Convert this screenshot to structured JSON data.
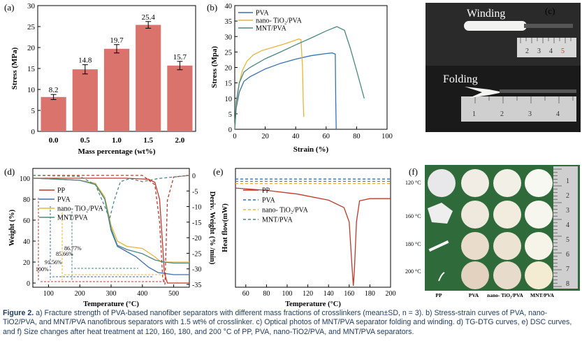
{
  "caption": {
    "label": "Figure 2.",
    "text": "a) Fracture strength of PVA-based nanofiber separators with different mass fractions of crosslinkers (mean±SD, n = 3). b) Stress-strain curves of PVA, nano-TiO2/PVA, and MNT/PVA nanofibrous separators with 1.5 wt% of crosslinker. c) Optical photos of MNT/PVA separator folding and winding. d) TG-DTG curves, e) DSC curves, and f) Size changes after heat treatment at 120, 160, 180, and 200 °C of PP, PVA, nano-TiO2/PVA, and MNT/PVA separators."
  },
  "panels": {
    "a": "(a)",
    "b": "(b)",
    "c": "(c)",
    "d": "(d)",
    "e": "(e)",
    "f": "(f)"
  },
  "photo_c": {
    "label_top": "Winding",
    "label_bottom": "Folding",
    "ruler_numbers": [
      "1",
      "2",
      "3",
      "4",
      "5"
    ]
  },
  "photo_f": {
    "row_labels": [
      "120 °C",
      "160 °C",
      "180 °C",
      "200 °C"
    ],
    "col_labels": [
      "PP",
      "PVA",
      "nano- TiO₂/PVA",
      "MNT/PVA"
    ],
    "ruler_numbers": [
      "1",
      "2",
      "3",
      "4",
      "5",
      "6",
      "7",
      "8"
    ]
  },
  "chart_data": [
    {
      "id": "a",
      "type": "bar",
      "categories": [
        "0.0",
        "0.5",
        "1.0",
        "1.5",
        "2.0"
      ],
      "values": [
        8.2,
        14.8,
        19.7,
        25.4,
        15.7
      ],
      "errors": [
        0.6,
        1.1,
        1.0,
        0.8,
        1.0
      ],
      "value_labels": [
        "8.2",
        "14.8",
        "19.7",
        "25.4",
        "15.7"
      ],
      "xlabel": "Mass percentage (wt%)",
      "ylabel": "Stress (MPa)",
      "ylim": [
        0,
        30
      ],
      "yticks": [
        "0",
        "5",
        "10",
        "15",
        "20",
        "25",
        "30"
      ],
      "color": "#d9736b"
    },
    {
      "id": "b",
      "type": "line",
      "xlabel": "Strain (%)",
      "ylabel": "Stress (Mpa)",
      "xlim": [
        0,
        100
      ],
      "ylim": [
        0,
        40
      ],
      "xticks": [
        "0",
        "20",
        "40",
        "60",
        "80",
        "100"
      ],
      "yticks": [
        "0",
        "5",
        "10",
        "15",
        "20",
        "25",
        "30",
        "35",
        "40"
      ],
      "series": [
        {
          "name": "PVA",
          "color": "#3a6fb5",
          "x": [
            0,
            1,
            3,
            6,
            10,
            20,
            30,
            40,
            50,
            60,
            64,
            66,
            66.3,
            66.6
          ],
          "y": [
            0,
            7,
            12,
            15.5,
            17,
            19.5,
            21.3,
            22.7,
            23.8,
            24.5,
            24.7,
            24.3,
            10,
            0
          ]
        },
        {
          "name": "nano- TiO₂/PVA",
          "color": "#e8b53a",
          "x": [
            0,
            1,
            3,
            5,
            8,
            12,
            18,
            25,
            32,
            38,
            42,
            43.5,
            44.5,
            45,
            45.3
          ],
          "y": [
            0,
            8,
            15,
            19,
            22,
            24,
            25.5,
            26.5,
            27.5,
            28.5,
            29.2,
            29,
            20,
            8,
            4
          ]
        },
        {
          "name": "MNT/PVA",
          "color": "#4a8a80",
          "x": [
            0,
            1,
            3,
            6,
            10,
            20,
            30,
            40,
            50,
            60,
            67,
            72,
            76,
            80,
            85
          ],
          "y": [
            0,
            9,
            15,
            18.5,
            20,
            22.8,
            25,
            27.3,
            29.5,
            31.8,
            33.2,
            32,
            26,
            19,
            10
          ]
        }
      ]
    },
    {
      "id": "d",
      "type": "line",
      "xlabel": "Temperature (°C)",
      "ylabel": "Weight (%)",
      "y2label": "Deriv. Weight (% /min)",
      "xlim": [
        50,
        550
      ],
      "ylim": [
        0,
        100
      ],
      "y2lim": [
        -35,
        0
      ],
      "xticks": [
        "100",
        "200",
        "300",
        "400",
        "500"
      ],
      "yticks": [
        "0",
        "20",
        "40",
        "60",
        "80",
        "100"
      ],
      "y2ticks": [
        "0",
        "-5",
        "-10",
        "-15",
        "-20",
        "-25",
        "-30",
        "-35"
      ],
      "series": [
        {
          "name": "PP",
          "color": "#c0392b",
          "axis": "tg",
          "x": [
            50,
            200,
            350,
            420,
            440,
            455,
            465,
            470,
            480,
            550
          ],
          "y": [
            100,
            100,
            100,
            99,
            96,
            80,
            35,
            10,
            0,
            0
          ]
        },
        {
          "name": "PVA",
          "color": "#3a6fb5",
          "axis": "tg",
          "x": [
            50,
            100,
            200,
            250,
            280,
            300,
            320,
            350,
            380,
            420,
            450,
            500,
            550
          ],
          "y": [
            100,
            99.5,
            98,
            95,
            80,
            50,
            35,
            30,
            25,
            15,
            10,
            8,
            8
          ]
        },
        {
          "name": "nano- TiO₂/PVA",
          "color": "#e8b53a",
          "axis": "tg",
          "x": [
            50,
            100,
            200,
            250,
            280,
            300,
            320,
            350,
            400,
            440,
            460,
            500,
            550
          ],
          "y": [
            100,
            99.5,
            98,
            95,
            82,
            55,
            40,
            35,
            33,
            25,
            20,
            20,
            20
          ]
        },
        {
          "name": "MNT/PVA",
          "color": "#4a8a80",
          "axis": "tg",
          "x": [
            50,
            100,
            200,
            250,
            280,
            300,
            320,
            350,
            400,
            440,
            470,
            500,
            550
          ],
          "y": [
            100,
            99.5,
            98,
            94,
            80,
            52,
            36,
            32,
            28,
            22,
            20,
            19,
            19
          ]
        },
        {
          "name": "PP-DTG",
          "color": "#c0392b",
          "axis": "dtg",
          "x": [
            50,
            400,
            440,
            455,
            465,
            472,
            480,
            500,
            550
          ],
          "y": [
            0,
            0,
            -3,
            -15,
            -33,
            -35,
            -8,
            -0.5,
            0
          ]
        },
        {
          "name": "MNT-DTG",
          "color": "#4a8a80",
          "axis": "dtg",
          "x": [
            50,
            200,
            250,
            280,
            295,
            310,
            330,
            360,
            400,
            450,
            550
          ],
          "y": [
            0,
            -0.3,
            -3,
            -10,
            -14,
            -8,
            -2,
            -1,
            -2,
            -1,
            0
          ]
        }
      ],
      "annotations": [
        "100%",
        "91.56%",
        "85.66%",
        "86.77%"
      ]
    },
    {
      "id": "e",
      "type": "line",
      "xlabel": "Temperature (°C)",
      "ylabel": "Heat flow(mW)",
      "xlim": [
        50,
        200
      ],
      "xticks": [
        "60",
        "80",
        "100",
        "120",
        "140",
        "160",
        "180",
        "200"
      ],
      "series": [
        {
          "name": "PP",
          "color": "#c0392b",
          "x": [
            50,
            80,
            110,
            140,
            155,
            160,
            163,
            164,
            165,
            167,
            170,
            180,
            200
          ],
          "y": [
            3.0,
            2.7,
            2.2,
            1.4,
            0.4,
            -1.5,
            -8,
            -10,
            -8,
            -1.5,
            1.3,
            1.6,
            1.6
          ]
        },
        {
          "name": "PVA",
          "color": "#3a6fb5",
          "x": [
            50,
            200
          ],
          "y": [
            4.2,
            4.2
          ]
        },
        {
          "name": "nano- TiO₂/PVA",
          "color": "#e8b53a",
          "x": [
            50,
            200
          ],
          "y": [
            3.6,
            3.6
          ]
        },
        {
          "name": "MNT/PVA",
          "color": "#4a8a80",
          "x": [
            50,
            200
          ],
          "y": [
            3.9,
            3.9
          ]
        }
      ]
    }
  ]
}
